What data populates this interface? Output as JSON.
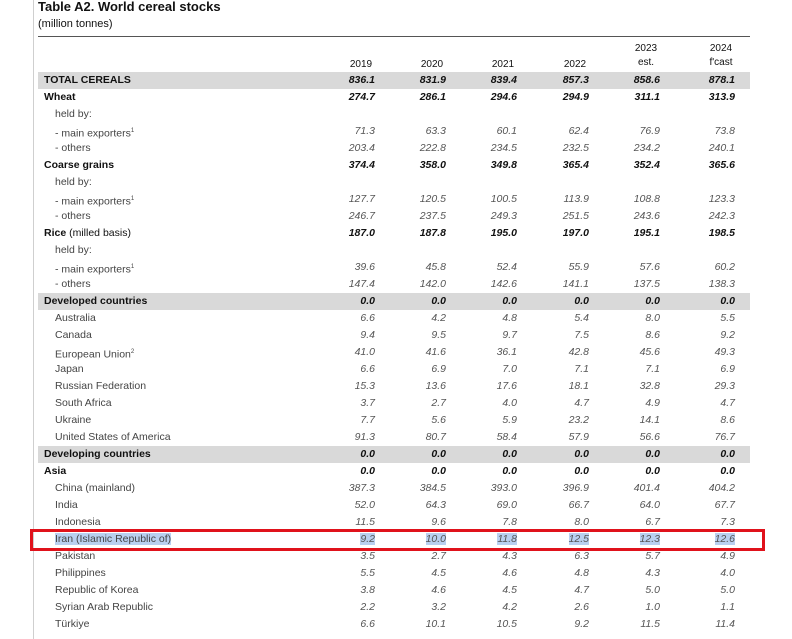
{
  "title": "Table A2. World cereal stocks",
  "subtitle": "(million tonnes)",
  "columns": [
    {
      "year": "2019",
      "note": ""
    },
    {
      "year": "2020",
      "note": ""
    },
    {
      "year": "2021",
      "note": ""
    },
    {
      "year": "2022",
      "note": ""
    },
    {
      "year": "2023",
      "note": "est."
    },
    {
      "year": "2024",
      "note": "f'cast"
    }
  ],
  "rows": [
    {
      "label": "TOTAL CEREALS",
      "values": [
        "836.1",
        "831.9",
        "839.4",
        "857.3",
        "858.6",
        "878.1"
      ]
    },
    {
      "label": "Wheat",
      "values": [
        "274.7",
        "286.1",
        "294.6",
        "294.9",
        "311.1",
        "313.9"
      ]
    },
    {
      "label": "held by:",
      "values": [
        "",
        "",
        "",
        "",
        "",
        ""
      ]
    },
    {
      "label": "- main exporters",
      "sup": "1",
      "values": [
        "71.3",
        "63.3",
        "60.1",
        "62.4",
        "76.9",
        "73.8"
      ]
    },
    {
      "label": "- others",
      "values": [
        "203.4",
        "222.8",
        "234.5",
        "232.5",
        "234.2",
        "240.1"
      ]
    },
    {
      "label": "Coarse grains",
      "values": [
        "374.4",
        "358.0",
        "349.8",
        "365.4",
        "352.4",
        "365.6"
      ]
    },
    {
      "label": "held by:",
      "values": [
        "",
        "",
        "",
        "",
        "",
        ""
      ]
    },
    {
      "label": "- main exporters",
      "sup": "1",
      "values": [
        "127.7",
        "120.5",
        "100.5",
        "113.9",
        "108.8",
        "123.3"
      ]
    },
    {
      "label": "- others",
      "values": [
        "246.7",
        "237.5",
        "249.3",
        "251.5",
        "243.6",
        "242.3"
      ]
    },
    {
      "label": "Rice",
      "label_suffix": "(milled basis)",
      "values": [
        "187.0",
        "187.8",
        "195.0",
        "197.0",
        "195.1",
        "198.5"
      ]
    },
    {
      "label": "held by:",
      "values": [
        "",
        "",
        "",
        "",
        "",
        ""
      ]
    },
    {
      "label": "- main exporters",
      "sup": "1",
      "values": [
        "39.6",
        "45.8",
        "52.4",
        "55.9",
        "57.6",
        "60.2"
      ]
    },
    {
      "label": "- others",
      "values": [
        "147.4",
        "142.0",
        "142.6",
        "141.1",
        "137.5",
        "138.3"
      ]
    },
    {
      "label": "Developed countries",
      "values": [
        "0.0",
        "0.0",
        "0.0",
        "0.0",
        "0.0",
        "0.0"
      ]
    },
    {
      "label": "Australia",
      "values": [
        "6.6",
        "4.2",
        "4.8",
        "5.4",
        "8.0",
        "5.5"
      ]
    },
    {
      "label": "Canada",
      "values": [
        "9.4",
        "9.5",
        "9.7",
        "7.5",
        "8.6",
        "9.2"
      ]
    },
    {
      "label": "European Union",
      "sup": "2",
      "values": [
        "41.0",
        "41.6",
        "36.1",
        "42.8",
        "45.6",
        "49.3"
      ]
    },
    {
      "label": "Japan",
      "values": [
        "6.6",
        "6.9",
        "7.0",
        "7.1",
        "7.1",
        "6.9"
      ]
    },
    {
      "label": "Russian Federation",
      "values": [
        "15.3",
        "13.6",
        "17.6",
        "18.1",
        "32.8",
        "29.3"
      ]
    },
    {
      "label": "South Africa",
      "values": [
        "3.7",
        "2.7",
        "4.0",
        "4.7",
        "4.9",
        "4.7"
      ]
    },
    {
      "label": "Ukraine",
      "values": [
        "7.7",
        "5.6",
        "5.9",
        "23.2",
        "14.1",
        "8.6"
      ]
    },
    {
      "label": "United States of America",
      "values": [
        "91.3",
        "80.7",
        "58.4",
        "57.9",
        "56.6",
        "76.7"
      ]
    },
    {
      "label": "Developing countries",
      "values": [
        "0.0",
        "0.0",
        "0.0",
        "0.0",
        "0.0",
        "0.0"
      ]
    },
    {
      "label": "Asia",
      "values": [
        "0.0",
        "0.0",
        "0.0",
        "0.0",
        "0.0",
        "0.0"
      ]
    },
    {
      "label": "China (mainland)",
      "values": [
        "387.3",
        "384.5",
        "393.0",
        "396.9",
        "401.4",
        "404.2"
      ]
    },
    {
      "label": "India",
      "values": [
        "52.0",
        "64.3",
        "69.0",
        "66.7",
        "64.0",
        "67.7"
      ]
    },
    {
      "label": "Indonesia",
      "values": [
        "11.5",
        "9.6",
        "7.8",
        "8.0",
        "6.7",
        "7.3"
      ]
    },
    {
      "label": "Iran (Islamic Republic of)",
      "values": [
        "9.2",
        "10.0",
        "11.8",
        "12.5",
        "12.3",
        "12.6"
      ]
    },
    {
      "label": "Pakistan",
      "values": [
        "3.5",
        "2.7",
        "4.3",
        "6.3",
        "5.7",
        "4.9"
      ]
    },
    {
      "label": "Philippines",
      "values": [
        "5.5",
        "4.5",
        "4.6",
        "4.8",
        "4.3",
        "4.0"
      ]
    },
    {
      "label": "Republic of Korea",
      "values": [
        "3.8",
        "4.6",
        "4.5",
        "4.7",
        "5.0",
        "5.0"
      ]
    },
    {
      "label": "Syrian Arab Republic",
      "values": [
        "2.2",
        "3.2",
        "4.2",
        "2.6",
        "1.0",
        "1.1"
      ]
    },
    {
      "label": "Türkiye",
      "values": [
        "6.6",
        "10.1",
        "10.5",
        "9.2",
        "11.5",
        "11.4"
      ]
    }
  ]
}
